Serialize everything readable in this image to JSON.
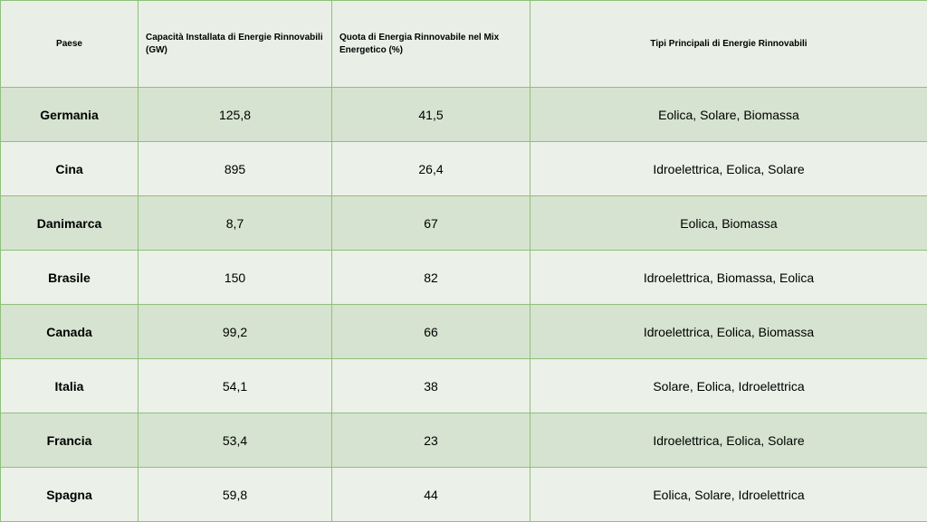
{
  "table": {
    "headers": {
      "country": "Paese",
      "capacity": "Capacità Installata di Energie Rinnovabili (GW)",
      "share": "Quota di Energia Rinnovabile nel Mix Energetico (%)",
      "types": "Tipi Principali di Energie Rinnovabili"
    },
    "rows": [
      {
        "country": "Germania",
        "capacity": "125,8",
        "share": "41,5",
        "types": "Eolica, Solare, Biomassa"
      },
      {
        "country": "Cina",
        "capacity": "895",
        "share": "26,4",
        "types": "Idroelettrica, Eolica, Solare"
      },
      {
        "country": "Danimarca",
        "capacity": "8,7",
        "share": "67",
        "types": "Eolica, Biomassa"
      },
      {
        "country": "Brasile",
        "capacity": "150",
        "share": "82",
        "types": "Idroelettrica, Biomassa, Eolica"
      },
      {
        "country": "Canada",
        "capacity": "99,2",
        "share": "66",
        "types": "Idroelettrica, Eolica, Biomassa"
      },
      {
        "country": "Italia",
        "capacity": "54,1",
        "share": "38",
        "types": "Solare, Eolica, Idroelettrica"
      },
      {
        "country": "Francia",
        "capacity": "53,4",
        "share": "23",
        "types": "Idroelettrica, Eolica, Solare"
      },
      {
        "country": "Spagna",
        "capacity": "59,8",
        "share": "44",
        "types": "Eolica, Solare, Idroelettrica"
      }
    ]
  },
  "colors": {
    "border": "#8fc07a",
    "header_bg": "#e9efe6",
    "row_dark": "#d6e3d0",
    "row_light": "#ebf0e8"
  }
}
